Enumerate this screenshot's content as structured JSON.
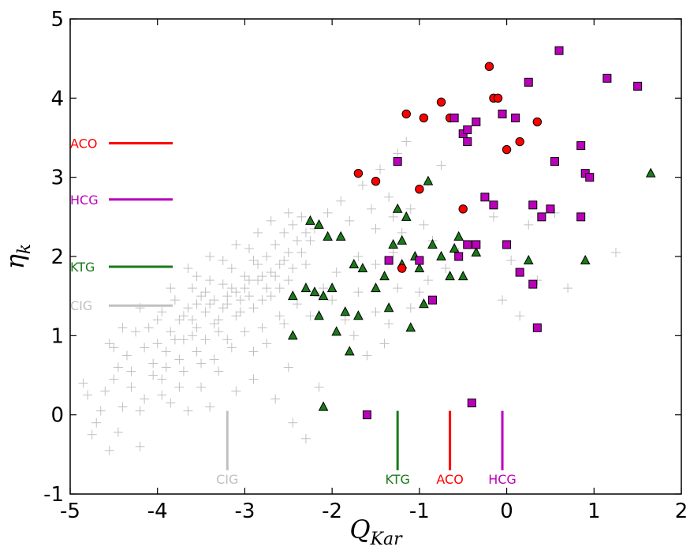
{
  "chart_data": {
    "type": "scatter",
    "title": "",
    "xlabel_main": "Q",
    "xlabel_sub": "Kar",
    "ylabel_main": "η",
    "ylabel_sub": "k",
    "xlim": [
      -5,
      2
    ],
    "ylim": [
      -1,
      5
    ],
    "x_ticks": [
      -5,
      -4,
      -3,
      -2,
      -1,
      0,
      1,
      2
    ],
    "x_tick_labels": [
      "-5",
      "-4",
      "-3",
      "-2",
      "-1",
      "0",
      "1",
      "2"
    ],
    "y_ticks": [
      -1,
      0,
      1,
      2,
      3,
      4,
      5
    ],
    "y_tick_labels": [
      "-1",
      "0",
      "1",
      "2",
      "3",
      "4",
      "5"
    ],
    "grid": false,
    "series": [
      {
        "name": "CIG",
        "marker": "plus",
        "color": "#c0c0c0",
        "mean_x": -3.2,
        "mean_y": 1.38,
        "points": [
          [
            -4.75,
            -0.25
          ],
          [
            -4.7,
            -0.1
          ],
          [
            -4.55,
            -0.45
          ],
          [
            -4.45,
            -0.22
          ],
          [
            -4.4,
            0.1
          ],
          [
            -4.3,
            0.35
          ],
          [
            -4.2,
            -0.4
          ],
          [
            -4.15,
            0.2
          ],
          [
            -4.05,
            0.5
          ],
          [
            -3.95,
            0.25
          ],
          [
            -3.9,
            0.6
          ],
          [
            -3.85,
            0.15
          ],
          [
            -3.75,
            0.7
          ],
          [
            -3.65,
            0.05
          ],
          [
            -3.4,
            0.1
          ],
          [
            -3.5,
            0.35
          ],
          [
            -3.3,
            0.55
          ],
          [
            -3.1,
            0.3
          ],
          [
            -2.9,
            0.45
          ],
          [
            -2.65,
            0.2
          ],
          [
            -2.5,
            0.6
          ],
          [
            -2.45,
            -0.1
          ],
          [
            -2.15,
            0.35
          ],
          [
            -2.3,
            -0.3
          ],
          [
            -4.8,
            0.25
          ],
          [
            -4.85,
            0.4
          ],
          [
            -4.5,
            0.85
          ],
          [
            -4.35,
            0.75
          ],
          [
            -4.25,
            1.05
          ],
          [
            -4.1,
            1.1
          ],
          [
            -4.0,
            0.9
          ],
          [
            -3.95,
            1.3
          ],
          [
            -3.85,
            1.05
          ],
          [
            -3.8,
            1.45
          ],
          [
            -3.75,
            1.2
          ],
          [
            -3.7,
            0.95
          ],
          [
            -3.65,
            1.35
          ],
          [
            -3.6,
            1.6
          ],
          [
            -3.55,
            1.1
          ],
          [
            -3.5,
            1.5
          ],
          [
            -3.45,
            1.3
          ],
          [
            -3.4,
            1.7
          ],
          [
            -3.35,
            1.45
          ],
          [
            -3.3,
            1.2
          ],
          [
            -3.25,
            1.65
          ],
          [
            -3.2,
            1.4
          ],
          [
            -3.15,
            1.85
          ],
          [
            -3.1,
            1.55
          ],
          [
            -3.05,
            1.3
          ],
          [
            -3.0,
            1.75
          ],
          [
            -2.95,
            1.5
          ],
          [
            -2.9,
            1.95
          ],
          [
            -2.85,
            1.7
          ],
          [
            -2.8,
            1.45
          ],
          [
            -2.75,
            2.0
          ],
          [
            -2.7,
            1.8
          ],
          [
            -2.65,
            2.15
          ],
          [
            -2.6,
            1.9
          ],
          [
            -2.55,
            2.3
          ],
          [
            -2.5,
            2.05
          ],
          [
            -2.45,
            2.4
          ],
          [
            -2.4,
            2.2
          ],
          [
            -2.35,
            2.5
          ],
          [
            -2.3,
            2.3
          ],
          [
            -3.9,
            0.8
          ],
          [
            -3.8,
            0.95
          ],
          [
            -3.7,
            1.25
          ],
          [
            -3.6,
            1.0
          ],
          [
            -3.55,
            1.4
          ],
          [
            -3.45,
            1.55
          ],
          [
            -3.35,
            1.15
          ],
          [
            -3.25,
            1.35
          ],
          [
            -3.15,
            1.6
          ],
          [
            -3.05,
            1.45
          ],
          [
            -2.95,
            1.7
          ],
          [
            -2.85,
            1.9
          ],
          [
            -2.75,
            1.6
          ],
          [
            -2.65,
            1.75
          ],
          [
            -2.55,
            1.95
          ],
          [
            -2.45,
            1.85
          ],
          [
            -2.35,
            2.05
          ],
          [
            -2.25,
            2.2
          ],
          [
            -3.6,
            1.2
          ],
          [
            -3.4,
            1.4
          ],
          [
            -3.2,
            1.5
          ],
          [
            -3.0,
            1.6
          ],
          [
            -2.8,
            1.75
          ],
          [
            -2.6,
            1.6
          ],
          [
            -3.3,
            1.05
          ],
          [
            -3.1,
            1.25
          ],
          [
            -2.9,
            1.35
          ],
          [
            -2.7,
            1.5
          ],
          [
            -2.5,
            1.7
          ],
          [
            -2.3,
            1.9
          ],
          [
            -2.2,
            2.35
          ],
          [
            -2.1,
            1.6
          ],
          [
            -2.0,
            1.45
          ],
          [
            -1.95,
            1.8
          ],
          [
            -1.85,
            1.2
          ],
          [
            -1.75,
            1.0
          ],
          [
            -1.7,
            1.55
          ],
          [
            -1.6,
            0.75
          ],
          [
            -1.5,
            1.3
          ],
          [
            -1.4,
            0.9
          ],
          [
            -1.35,
            1.15
          ],
          [
            -1.25,
            1.6
          ],
          [
            -1.1,
            1.35
          ],
          [
            -1.0,
            1.55
          ],
          [
            -0.9,
            1.7
          ],
          [
            -2.05,
            2.55
          ],
          [
            -1.9,
            2.7
          ],
          [
            -1.8,
            2.45
          ],
          [
            -1.65,
            2.9
          ],
          [
            -1.55,
            2.6
          ],
          [
            -1.45,
            3.1
          ],
          [
            -1.35,
            2.75
          ],
          [
            -1.25,
            3.3
          ],
          [
            -1.15,
            3.45
          ],
          [
            -0.9,
            2.95
          ],
          [
            -0.75,
            3.15
          ],
          [
            -1.5,
            2.35
          ],
          [
            -1.3,
            2.5
          ],
          [
            -1.2,
            2.3
          ],
          [
            -1.1,
            2.6
          ],
          [
            -0.95,
            2.4
          ],
          [
            -0.85,
            2.2
          ],
          [
            -1.7,
            2.0
          ],
          [
            -1.5,
            1.9
          ],
          [
            -1.3,
            2.05
          ],
          [
            -0.7,
            1.85
          ],
          [
            -0.55,
            2.05
          ],
          [
            -0.05,
            1.45
          ],
          [
            0.15,
            1.25
          ],
          [
            0.35,
            1.7
          ],
          [
            0.7,
            1.6
          ],
          [
            1.25,
            2.05
          ],
          [
            0.55,
            2.55
          ],
          [
            0.25,
            2.4
          ],
          [
            -0.15,
            2.5
          ],
          [
            0.05,
            1.95
          ],
          [
            -3.95,
            0.45
          ],
          [
            -4.05,
            0.65
          ],
          [
            -4.15,
            0.85
          ],
          [
            -4.3,
            0.55
          ],
          [
            -4.45,
            0.6
          ],
          [
            -4.6,
            0.3
          ],
          [
            -3.7,
            0.55
          ],
          [
            -3.55,
            0.8
          ],
          [
            -3.45,
            0.95
          ],
          [
            -3.35,
            0.7
          ],
          [
            -3.15,
            0.85
          ],
          [
            -3.0,
            1.05
          ],
          [
            -2.8,
            1.1
          ],
          [
            -2.6,
            1.25
          ],
          [
            -2.4,
            1.4
          ],
          [
            -3.2,
            0.95
          ],
          [
            -3.5,
            0.65
          ],
          [
            -2.9,
            0.8
          ],
          [
            -4.5,
            0.45
          ],
          [
            -4.65,
            0.05
          ],
          [
            -4.2,
            0.05
          ],
          [
            -3.75,
            0.35
          ],
          [
            -2.75,
            0.9
          ],
          [
            -2.55,
            1.15
          ],
          [
            -2.25,
            1.25
          ],
          [
            -2.15,
            1.5
          ],
          [
            -3.85,
            1.6
          ],
          [
            -3.65,
            1.85
          ],
          [
            -3.4,
            2.0
          ],
          [
            -3.1,
            2.15
          ],
          [
            -2.85,
            2.3
          ],
          [
            -2.7,
            2.45
          ],
          [
            -2.5,
            2.55
          ],
          [
            -3.55,
            1.75
          ],
          [
            -3.25,
            1.95
          ],
          [
            -2.95,
            2.1
          ],
          [
            -4.0,
            1.2
          ],
          [
            -4.2,
            1.35
          ],
          [
            -4.4,
            1.1
          ],
          [
            -4.55,
            0.9
          ]
        ]
      },
      {
        "name": "KTG",
        "marker": "triangle",
        "color": "#1a7a1a",
        "mean_x": -1.25,
        "mean_y": 1.87,
        "points": [
          [
            -2.45,
            1.0
          ],
          [
            -2.45,
            1.5
          ],
          [
            -2.3,
            1.6
          ],
          [
            -2.25,
            2.45
          ],
          [
            -2.2,
            1.55
          ],
          [
            -2.15,
            2.4
          ],
          [
            -2.15,
            1.25
          ],
          [
            -2.1,
            1.5
          ],
          [
            -2.05,
            2.25
          ],
          [
            -2.0,
            1.6
          ],
          [
            -1.95,
            1.05
          ],
          [
            -1.9,
            2.25
          ],
          [
            -1.85,
            1.3
          ],
          [
            -1.8,
            0.8
          ],
          [
            -1.75,
            1.9
          ],
          [
            -1.7,
            1.25
          ],
          [
            -1.65,
            1.85
          ],
          [
            -1.5,
            1.6
          ],
          [
            -1.4,
            1.75
          ],
          [
            -1.35,
            1.35
          ],
          [
            -1.3,
            2.15
          ],
          [
            -1.25,
            2.6
          ],
          [
            -1.2,
            1.9
          ],
          [
            -1.2,
            2.2
          ],
          [
            -1.15,
            2.5
          ],
          [
            -1.1,
            1.1
          ],
          [
            -1.05,
            2.0
          ],
          [
            -1.0,
            1.85
          ],
          [
            -0.95,
            1.4
          ],
          [
            -0.9,
            2.95
          ],
          [
            -0.85,
            2.15
          ],
          [
            -0.75,
            2.0
          ],
          [
            -0.65,
            1.75
          ],
          [
            -0.6,
            2.1
          ],
          [
            -0.55,
            2.25
          ],
          [
            -0.5,
            1.75
          ],
          [
            -0.35,
            2.05
          ],
          [
            0.25,
            1.95
          ],
          [
            0.9,
            1.95
          ],
          [
            1.65,
            3.05
          ],
          [
            -2.1,
            0.1
          ]
        ]
      },
      {
        "name": "ACO",
        "marker": "circle",
        "color": "#ff0000",
        "mean_x": -0.65,
        "mean_y": 3.43,
        "points": [
          [
            -1.7,
            3.05
          ],
          [
            -1.5,
            2.95
          ],
          [
            -1.15,
            3.8
          ],
          [
            -1.0,
            2.85
          ],
          [
            -0.95,
            3.75
          ],
          [
            -0.75,
            3.95
          ],
          [
            -0.65,
            3.75
          ],
          [
            -0.5,
            2.6
          ],
          [
            -0.2,
            4.4
          ],
          [
            -0.15,
            4.0
          ],
          [
            -0.1,
            4.0
          ],
          [
            0.0,
            3.35
          ],
          [
            0.15,
            3.45
          ],
          [
            0.35,
            3.7
          ],
          [
            -1.2,
            1.85
          ]
        ]
      },
      {
        "name": "HCG",
        "marker": "square",
        "color": "#bb00bb",
        "mean_x": -0.05,
        "mean_y": 2.72,
        "points": [
          [
            -1.6,
            0.0
          ],
          [
            -1.35,
            1.95
          ],
          [
            -1.25,
            3.2
          ],
          [
            -1.0,
            1.95
          ],
          [
            -0.85,
            1.45
          ],
          [
            -0.6,
            3.75
          ],
          [
            -0.55,
            2.0
          ],
          [
            -0.5,
            3.55
          ],
          [
            -0.45,
            3.6
          ],
          [
            -0.45,
            3.45
          ],
          [
            -0.45,
            2.15
          ],
          [
            -0.4,
            0.15
          ],
          [
            -0.35,
            2.15
          ],
          [
            -0.35,
            3.7
          ],
          [
            -0.25,
            2.75
          ],
          [
            -0.15,
            2.65
          ],
          [
            -0.05,
            3.8
          ],
          [
            0.0,
            2.15
          ],
          [
            0.1,
            3.75
          ],
          [
            0.15,
            1.8
          ],
          [
            0.25,
            4.2
          ],
          [
            0.3,
            2.65
          ],
          [
            0.3,
            1.65
          ],
          [
            0.35,
            1.1
          ],
          [
            0.4,
            2.5
          ],
          [
            0.5,
            2.6
          ],
          [
            0.55,
            3.2
          ],
          [
            0.6,
            4.6
          ],
          [
            0.85,
            3.4
          ],
          [
            0.85,
            2.5
          ],
          [
            0.9,
            3.05
          ],
          [
            0.95,
            3.0
          ],
          [
            1.15,
            4.25
          ],
          [
            1.5,
            4.15
          ]
        ]
      }
    ]
  }
}
